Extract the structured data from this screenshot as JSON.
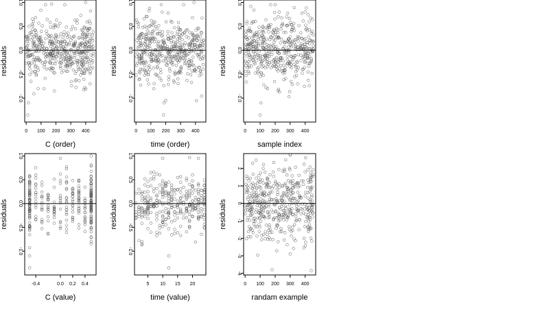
{
  "figure": {
    "panels": [
      {
        "id": "c-order",
        "xlabel": "C (order)",
        "ylabel": "residuals"
      },
      {
        "id": "time-order",
        "xlabel": "time (order)",
        "ylabel": "residuals"
      },
      {
        "id": "sample-index",
        "xlabel": "sample index",
        "ylabel": "residuals"
      },
      {
        "id": "c-value",
        "xlabel": "C (value)",
        "ylabel": "residuals"
      },
      {
        "id": "time-value",
        "xlabel": "time (value)",
        "ylabel": "residuals"
      },
      {
        "id": "random-example",
        "xlabel": "randam example",
        "ylabel": "residuals"
      }
    ]
  },
  "chart_data": [
    {
      "type": "scatter",
      "title": "",
      "xlabel": "C (order)",
      "ylabel": "residuals",
      "xlim": [
        -10,
        470
      ],
      "ylim": [
        -1.5,
        1.05
      ],
      "xticks": [
        0,
        100,
        200,
        300,
        400
      ],
      "xtick_labels": [
        "0",
        "100",
        "200",
        "300",
        "400"
      ],
      "yticks": [
        1.0,
        0.5,
        0.0,
        -0.5,
        -1.0
      ],
      "ytick_labels": [
        "1.0",
        "0.5",
        "0.0",
        "-0.5",
        "-1.0"
      ],
      "reference_line_y": 0,
      "point_count": 460,
      "x_mode": "order",
      "points_sample": [
        [
          10,
          -1.35
        ],
        [
          15,
          -1.1
        ],
        [
          80,
          -0.8
        ],
        [
          120,
          -0.8
        ],
        [
          130,
          0.95
        ],
        [
          190,
          -0.85
        ],
        [
          260,
          0.95
        ],
        [
          400,
          1.0
        ],
        [
          430,
          -0.7
        ],
        [
          50,
          0.6
        ],
        [
          300,
          -0.3
        ]
      ]
    },
    {
      "type": "scatter",
      "title": "",
      "xlabel": "time (order)",
      "ylabel": "residuals",
      "xlim": [
        -10,
        470
      ],
      "ylim": [
        -1.5,
        1.05
      ],
      "xticks": [
        0,
        100,
        200,
        300,
        400
      ],
      "xtick_labels": [
        "0",
        "100",
        "200",
        "300",
        "400"
      ],
      "yticks": [
        1.0,
        0.5,
        0.0,
        -0.5,
        -1.0
      ],
      "ytick_labels": [
        "1.0",
        "0.5",
        "0.0",
        "-0.5",
        "-1.0"
      ],
      "reference_line_y": 0,
      "point_count": 460,
      "x_mode": "order",
      "points_sample": [
        [
          185,
          -1.35
        ],
        [
          190,
          -1.1
        ],
        [
          200,
          -1.05
        ],
        [
          170,
          0.95
        ],
        [
          320,
          0.95
        ],
        [
          390,
          1.0
        ],
        [
          120,
          -0.8
        ],
        [
          60,
          0.5
        ],
        [
          440,
          -0.5
        ]
      ]
    },
    {
      "type": "scatter",
      "title": "",
      "xlabel": "sample index",
      "ylabel": "residuals",
      "xlim": [
        -10,
        470
      ],
      "ylim": [
        -1.5,
        1.05
      ],
      "xticks": [
        0,
        100,
        200,
        300,
        400
      ],
      "xtick_labels": [
        "0",
        "100",
        "200",
        "300",
        "400"
      ],
      "yticks": [
        1.0,
        0.5,
        0.0,
        -0.5,
        -1.0
      ],
      "ytick_labels": [
        "1.0",
        "0.5",
        "0.0",
        "-0.5",
        "-1.0"
      ],
      "reference_line_y": 0,
      "point_count": 460,
      "x_mode": "order",
      "points_sample": [
        [
          100,
          -1.35
        ],
        [
          105,
          -1.1
        ],
        [
          170,
          0.95
        ],
        [
          200,
          0.95
        ],
        [
          220,
          0.7
        ],
        [
          400,
          0.8
        ],
        [
          330,
          -0.55
        ],
        [
          150,
          -0.8
        ]
      ]
    },
    {
      "type": "scatter",
      "title": "",
      "xlabel": "C (value)",
      "ylabel": "residuals",
      "xlim": [
        -0.58,
        0.58
      ],
      "ylim": [
        -1.5,
        1.05
      ],
      "xticks": [
        -0.4,
        0.0,
        0.2,
        0.4
      ],
      "xtick_labels": [
        "-0.4",
        "0.0",
        "0.2",
        "0.4"
      ],
      "yticks": [
        1.0,
        0.5,
        0.0,
        -0.5,
        -1.0
      ],
      "ytick_labels": [
        "1.0",
        "0.5",
        "0.0",
        "-0.5",
        "-1.0"
      ],
      "reference_line_y": 0,
      "point_count": 300,
      "x_mode": "discrete",
      "x_levels": [
        -0.5,
        -0.4,
        -0.3,
        -0.2,
        -0.1,
        0.0,
        0.1,
        0.2,
        0.3,
        0.4,
        0.5
      ],
      "points_sample": [
        [
          -0.5,
          -1.35
        ],
        [
          -0.5,
          -1.1
        ],
        [
          -0.5,
          0.45
        ],
        [
          0.0,
          0.95
        ],
        [
          0.5,
          1.0
        ],
        [
          0.5,
          -0.7
        ],
        [
          -0.4,
          0.6
        ],
        [
          0.2,
          -0.3
        ]
      ]
    },
    {
      "type": "scatter",
      "title": "",
      "xlabel": "time (value)",
      "ylabel": "residuals",
      "xlim": [
        0.5,
        24.5
      ],
      "ylim": [
        -1.5,
        1.05
      ],
      "xticks": [
        5,
        10,
        15,
        20
      ],
      "xtick_labels": [
        "5",
        "10",
        "15",
        "20"
      ],
      "yticks": [
        1.0,
        0.5,
        0.0,
        -0.5,
        -1.0
      ],
      "ytick_labels": [
        "1.0",
        "0.5",
        "0.0",
        "-0.5",
        "-1.0"
      ],
      "reference_line_y": 0,
      "point_count": 320,
      "x_mode": "discrete",
      "x_levels": [
        1,
        2,
        3,
        4,
        5,
        6,
        7,
        8,
        9,
        10,
        11,
        12,
        13,
        14,
        15,
        16,
        17,
        18,
        19,
        20,
        21,
        22,
        23,
        24
      ],
      "points_sample": [
        [
          12,
          -1.35
        ],
        [
          12,
          -1.1
        ],
        [
          10,
          0.95
        ],
        [
          22,
          0.95
        ],
        [
          24,
          -0.5
        ],
        [
          2,
          0.3
        ],
        [
          16,
          0.45
        ],
        [
          6,
          -0.6
        ]
      ]
    },
    {
      "type": "scatter",
      "title": "",
      "xlabel": "randam example",
      "ylabel": "residuals",
      "xlim": [
        -10,
        470
      ],
      "ylim": [
        -4.1,
        2.85
      ],
      "xticks": [
        0,
        100,
        200,
        300,
        400
      ],
      "xtick_labels": [
        "0",
        "100",
        "200",
        "300",
        "400"
      ],
      "yticks": [
        2,
        1,
        0,
        -1,
        -2,
        -3,
        -4
      ],
      "ytick_labels": [
        "2",
        "1",
        "0",
        "-1",
        "-2",
        "-3",
        "-4"
      ],
      "reference_line_y": 0,
      "point_count": 460,
      "x_mode": "order",
      "points_sample": [
        [
          180,
          -3.8
        ],
        [
          440,
          -3.85
        ],
        [
          270,
          2.5
        ],
        [
          50,
          2.3
        ],
        [
          120,
          2.0
        ],
        [
          300,
          -2.9
        ],
        [
          400,
          1.8
        ],
        [
          220,
          -2.2
        ]
      ]
    }
  ]
}
